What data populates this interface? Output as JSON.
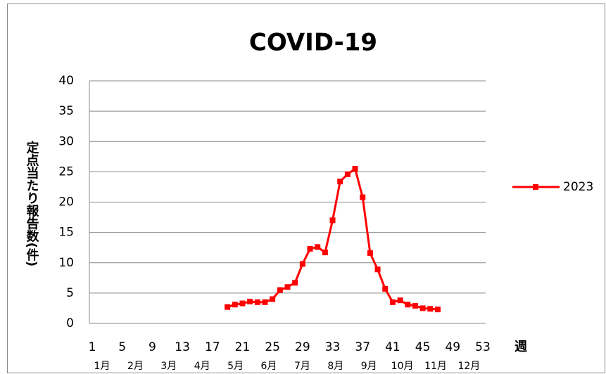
{
  "chart_data": {
    "type": "line",
    "title": "COVID-19",
    "y_label": "定点当たり報告数(件)",
    "x_label": "週",
    "x": [
      19,
      20,
      21,
      22,
      23,
      24,
      25,
      26,
      27,
      28,
      29,
      30,
      31,
      32,
      33,
      34,
      35,
      36,
      37,
      38,
      39,
      40,
      41,
      42,
      43,
      44,
      45,
      46,
      47
    ],
    "series": [
      {
        "name": "2023",
        "color": "#ff0000",
        "values": [
          2.7,
          3.1,
          3.3,
          3.6,
          3.5,
          3.5,
          4.0,
          5.5,
          6.0,
          6.7,
          9.8,
          12.3,
          12.6,
          11.7,
          17.0,
          23.4,
          24.6,
          25.5,
          20.8,
          11.6,
          8.9,
          5.7,
          3.5,
          3.8,
          3.1,
          2.9,
          2.5,
          2.4,
          2.3
        ]
      }
    ],
    "xlim": [
      1,
      53
    ],
    "xticks": [
      1,
      5,
      9,
      13,
      17,
      21,
      25,
      29,
      33,
      37,
      41,
      45,
      49,
      53
    ],
    "ylim": [
      0,
      40
    ],
    "yticks": [
      0,
      5,
      10,
      15,
      20,
      25,
      30,
      35,
      40
    ],
    "month_labels": [
      "1月",
      "2月",
      "3月",
      "4月",
      "5月",
      "6月",
      "7月",
      "8月",
      "9月",
      "10月",
      "11月",
      "12月"
    ],
    "grid": true,
    "legend": "right"
  }
}
